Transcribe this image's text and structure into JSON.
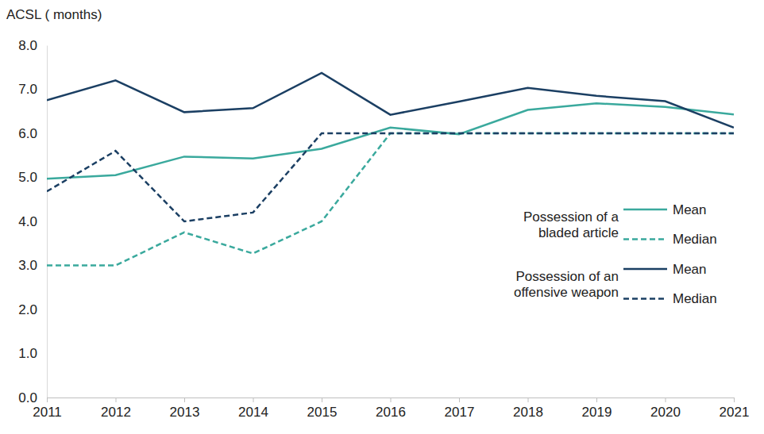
{
  "chart_data": {
    "type": "line",
    "y_label": "ACSL ( months)",
    "categories": [
      "2011",
      "2012",
      "2013",
      "2014",
      "2015",
      "2016",
      "2017",
      "2018",
      "2019",
      "2020",
      "2021"
    ],
    "ylim": [
      0,
      8
    ],
    "yticks": [
      {
        "value": 0,
        "label": "0.0"
      },
      {
        "value": 1,
        "label": "1.0"
      },
      {
        "value": 2,
        "label": "2.0"
      },
      {
        "value": 3,
        "label": "3.0"
      },
      {
        "value": 4,
        "label": "4.0"
      },
      {
        "value": 5,
        "label": "5.0"
      },
      {
        "value": 6,
        "label": "6.0"
      },
      {
        "value": 7,
        "label": "7.0"
      },
      {
        "value": 8,
        "label": "8.0"
      }
    ],
    "grid": false,
    "legend": "right",
    "series": [
      {
        "name": "Mean",
        "group": "Possession of a bladed article",
        "color": "#3aa99d",
        "line_style": "solid",
        "values": [
          4.97,
          5.05,
          5.47,
          5.43,
          5.65,
          6.13,
          5.98,
          6.53,
          6.68,
          6.6,
          6.43
        ]
      },
      {
        "name": "Median",
        "group": "Possession of a bladed article",
        "color": "#3aa99d",
        "line_style": "dashed",
        "values": [
          3.0,
          3.0,
          3.75,
          3.27,
          4.0,
          6.0,
          6.0,
          6.0,
          6.0,
          6.0,
          6.0
        ]
      },
      {
        "name": "Mean",
        "group": "Possession of an offensive weapon",
        "color": "#1b3f63",
        "line_style": "solid",
        "values": [
          6.75,
          7.2,
          6.48,
          6.57,
          7.37,
          6.42,
          6.72,
          7.03,
          6.85,
          6.73,
          6.13
        ]
      },
      {
        "name": "Median",
        "group": "Possession of an offensive weapon",
        "color": "#1b3f63",
        "line_style": "dashed",
        "values": [
          4.68,
          5.6,
          4.0,
          4.2,
          6.0,
          6.0,
          6.0,
          6.0,
          6.0,
          6.0,
          6.0
        ]
      }
    ]
  }
}
